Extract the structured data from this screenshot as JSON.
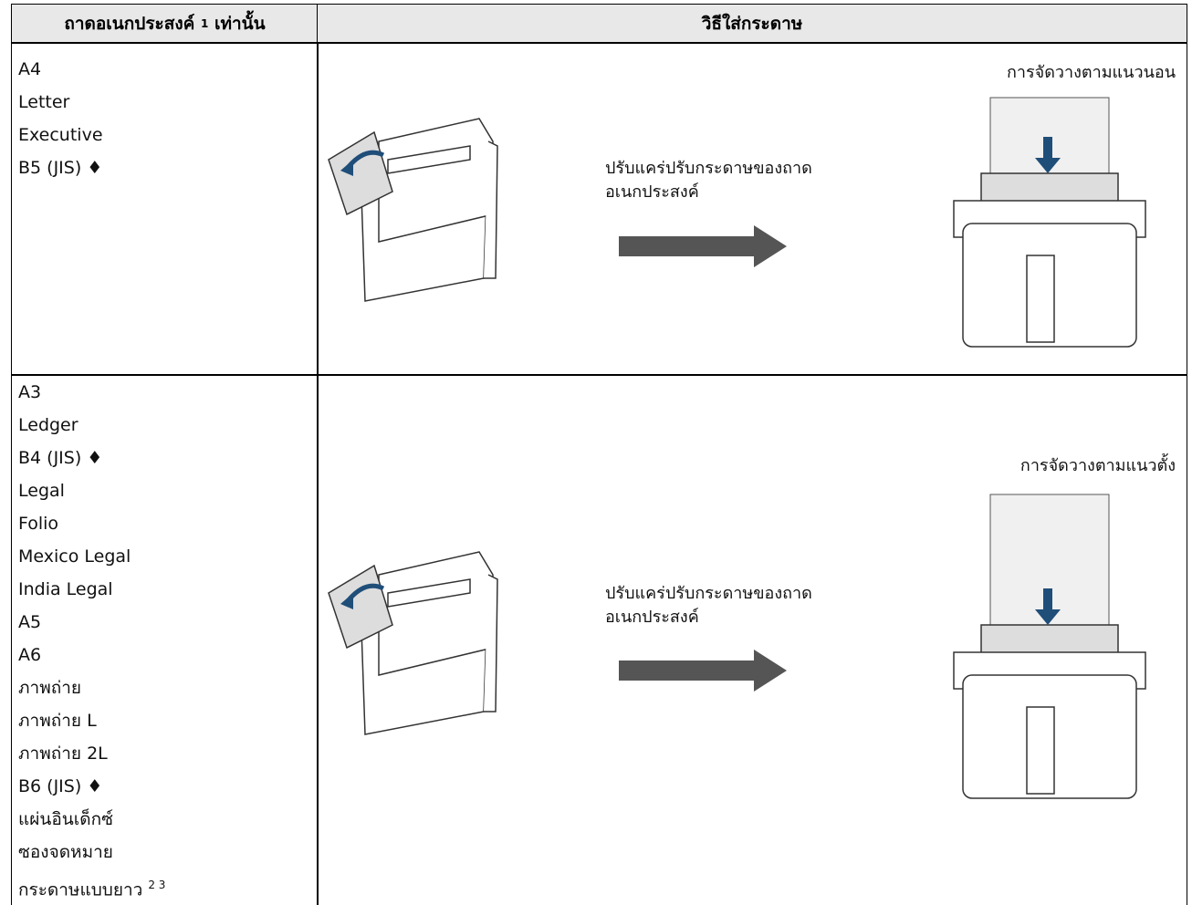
{
  "header": {
    "sizes": {
      "text": "ถาดอเนกประสงค์",
      "note": "1",
      "suffix": "เท่านั้น"
    },
    "method": "วิธีใส่กระดาษ"
  },
  "rows": [
    {
      "sizes": [
        "A4",
        "Letter",
        "Executive",
        "B5 (JIS) ♦"
      ],
      "instruction": [
        "ปรับแคร่ปรับกระดาษของถาด",
        "อเนกประสงค์"
      ],
      "orientation": "การจัดวางตามแนวนอน"
    },
    {
      "sizes": [
        "A3",
        "Ledger",
        "B4 (JIS) ♦",
        "Legal",
        "Folio",
        "Mexico Legal",
        "India Legal",
        "A5",
        "A6",
        "ภาพถ่าย",
        "ภาพถ่าย L",
        "ภาพถ่าย 2L",
        "B6 (JIS) ♦",
        "แผ่นอินเด็กซ์",
        "ซองจดหมาย",
        {
          "text": "กระดาษแบบยาว",
          "note": "2 3"
        }
      ],
      "instruction": [
        "ปรับแคร่ปรับกระดาษของถาด",
        "อเนกประสงค์"
      ],
      "orientation": "การจัดวางตามแนวตั้ง"
    }
  ]
}
